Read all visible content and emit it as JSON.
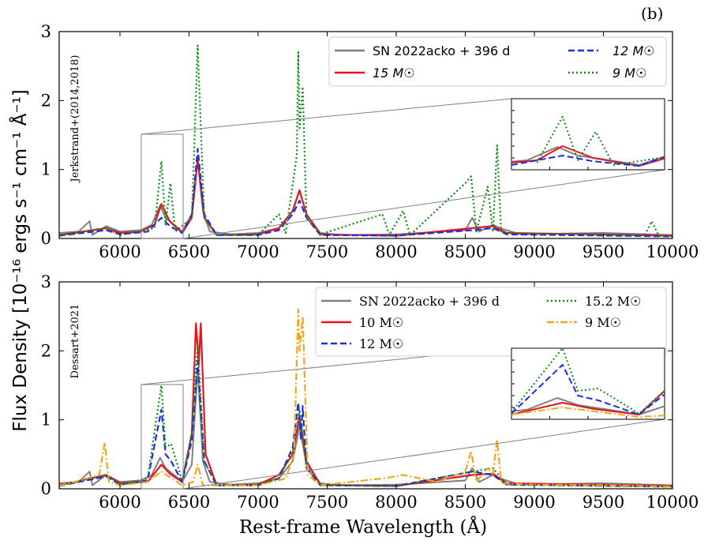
{
  "figure": {
    "panel_label": "(b)",
    "ylabel": "Flux Density [10⁻¹⁶ ergs s⁻¹ cm⁻¹ Å⁻¹]",
    "xlabel": "Rest-frame Wavelength (Å)"
  },
  "chart_data": [
    {
      "type": "line",
      "panel": "top",
      "model_label": "Jerkstrand+(2014,2018)",
      "xlim": [
        5560,
        10000
      ],
      "ylim": [
        0,
        3
      ],
      "xticks": [
        6000,
        6500,
        7000,
        7500,
        8000,
        8500,
        9000,
        9500,
        10000
      ],
      "yticks": [
        0,
        1,
        2,
        3
      ],
      "inset": {
        "x_range": [
          6200,
          6500
        ],
        "y_range": [
          0,
          1.5
        ],
        "location": "upper-right"
      },
      "series": [
        {
          "name": "SN 2022acko + 396 d",
          "color": "#808080",
          "style": "solid",
          "points": [
            [
              5560,
              0.08
            ],
            [
              5700,
              0.1
            ],
            [
              5780,
              0.25
            ],
            [
              5800,
              0.05
            ],
            [
              5900,
              0.18
            ],
            [
              6000,
              0.1
            ],
            [
              6150,
              0.12
            ],
            [
              6230,
              0.2
            ],
            [
              6290,
              0.48
            ],
            [
              6330,
              0.3
            ],
            [
              6380,
              0.22
            ],
            [
              6450,
              0.1
            ],
            [
              6520,
              0.35
            ],
            [
              6563,
              1.15
            ],
            [
              6600,
              0.4
            ],
            [
              6650,
              0.1
            ],
            [
              6800,
              0.06
            ],
            [
              7000,
              0.08
            ],
            [
              7150,
              0.15
            ],
            [
              7250,
              0.4
            ],
            [
              7300,
              0.7
            ],
            [
              7350,
              0.35
            ],
            [
              7450,
              0.08
            ],
            [
              7600,
              0.05
            ],
            [
              8000,
              0.06
            ],
            [
              8500,
              0.12
            ],
            [
              8550,
              0.3
            ],
            [
              8600,
              0.1
            ],
            [
              8700,
              0.2
            ],
            [
              8750,
              0.15
            ],
            [
              8900,
              0.06
            ],
            [
              9500,
              0.08
            ],
            [
              10000,
              0.05
            ]
          ]
        },
        {
          "name": "15 M☉",
          "color": "#e8141c",
          "style": "solid",
          "points": [
            [
              5560,
              0.05
            ],
            [
              5900,
              0.15
            ],
            [
              6000,
              0.08
            ],
            [
              6150,
              0.1
            ],
            [
              6250,
              0.2
            ],
            [
              6300,
              0.5
            ],
            [
              6360,
              0.25
            ],
            [
              6450,
              0.08
            ],
            [
              6520,
              0.3
            ],
            [
              6563,
              1.15
            ],
            [
              6610,
              0.3
            ],
            [
              6700,
              0.05
            ],
            [
              7000,
              0.06
            ],
            [
              7150,
              0.15
            ],
            [
              7250,
              0.4
            ],
            [
              7300,
              0.7
            ],
            [
              7350,
              0.35
            ],
            [
              7450,
              0.06
            ],
            [
              8000,
              0.04
            ],
            [
              8550,
              0.15
            ],
            [
              8700,
              0.18
            ],
            [
              8800,
              0.08
            ],
            [
              10000,
              0.04
            ]
          ]
        },
        {
          "name": "12 M☉",
          "color": "#1a2ee6",
          "style": "dashed",
          "points": [
            [
              5560,
              0.04
            ],
            [
              5900,
              0.12
            ],
            [
              6000,
              0.06
            ],
            [
              6200,
              0.1
            ],
            [
              6300,
              0.3
            ],
            [
              6360,
              0.18
            ],
            [
              6450,
              0.08
            ],
            [
              6520,
              0.35
            ],
            [
              6563,
              1.3
            ],
            [
              6610,
              0.35
            ],
            [
              6700,
              0.05
            ],
            [
              7000,
              0.05
            ],
            [
              7150,
              0.12
            ],
            [
              7250,
              0.35
            ],
            [
              7300,
              0.55
            ],
            [
              7350,
              0.3
            ],
            [
              7450,
              0.05
            ],
            [
              8000,
              0.04
            ],
            [
              8550,
              0.12
            ],
            [
              8700,
              0.15
            ],
            [
              8800,
              0.06
            ],
            [
              10000,
              0.03
            ]
          ]
        },
        {
          "name": "9 M☉",
          "color": "#0e8a14",
          "style": "dotted",
          "points": [
            [
              5560,
              0.04
            ],
            [
              5900,
              0.15
            ],
            [
              6000,
              0.05
            ],
            [
              6250,
              0.15
            ],
            [
              6300,
              1.12
            ],
            [
              6330,
              0.2
            ],
            [
              6365,
              0.8
            ],
            [
              6400,
              0.1
            ],
            [
              6520,
              0.3
            ],
            [
              6563,
              2.8
            ],
            [
              6610,
              0.3
            ],
            [
              6700,
              0.05
            ],
            [
              7000,
              0.05
            ],
            [
              7150,
              0.35
            ],
            [
              7200,
              0.08
            ],
            [
              7280,
              1.2
            ],
            [
              7291,
              2.7
            ],
            [
              7300,
              1.6
            ],
            [
              7323,
              2.2
            ],
            [
              7350,
              0.3
            ],
            [
              7450,
              0.06
            ],
            [
              7900,
              0.35
            ],
            [
              7950,
              0.05
            ],
            [
              8050,
              0.4
            ],
            [
              8100,
              0.05
            ],
            [
              8500,
              0.8
            ],
            [
              8542,
              0.9
            ],
            [
              8580,
              0.1
            ],
            [
              8662,
              0.75
            ],
            [
              8700,
              0.1
            ],
            [
              8730,
              1.35
            ],
            [
              8760,
              0.08
            ],
            [
              9800,
              0.05
            ],
            [
              9850,
              0.25
            ],
            [
              9900,
              0.04
            ],
            [
              10000,
              0.03
            ]
          ]
        }
      ]
    },
    {
      "type": "line",
      "panel": "bottom",
      "model_label": "Dessart+2021",
      "xlim": [
        5560,
        10000
      ],
      "ylim": [
        0,
        3
      ],
      "xticks": [
        6000,
        6500,
        7000,
        7500,
        8000,
        8500,
        9000,
        9500,
        10000
      ],
      "yticks": [
        0,
        1,
        2,
        3
      ],
      "inset": {
        "x_range": [
          6200,
          6500
        ],
        "y_range": [
          0,
          1.5
        ],
        "location": "upper-right"
      },
      "series": [
        {
          "name": "SN 2022acko + 396 d",
          "color": "#808080",
          "style": "solid",
          "points": [
            [
              5560,
              0.08
            ],
            [
              5700,
              0.1
            ],
            [
              5780,
              0.25
            ],
            [
              5800,
              0.05
            ],
            [
              5900,
              0.2
            ],
            [
              6000,
              0.1
            ],
            [
              6150,
              0.12
            ],
            [
              6230,
              0.2
            ],
            [
              6290,
              0.45
            ],
            [
              6330,
              0.3
            ],
            [
              6380,
              0.22
            ],
            [
              6450,
              0.1
            ],
            [
              6520,
              0.35
            ],
            [
              6563,
              1.75
            ],
            [
              6600,
              0.4
            ],
            [
              6650,
              0.1
            ],
            [
              6800,
              0.06
            ],
            [
              7000,
              0.08
            ],
            [
              7150,
              0.15
            ],
            [
              7250,
              0.4
            ],
            [
              7300,
              0.9
            ],
            [
              7350,
              0.35
            ],
            [
              7450,
              0.08
            ],
            [
              7600,
              0.05
            ],
            [
              8000,
              0.06
            ],
            [
              8500,
              0.12
            ],
            [
              8550,
              0.3
            ],
            [
              8600,
              0.1
            ],
            [
              8700,
              0.2
            ],
            [
              8750,
              0.15
            ],
            [
              8900,
              0.06
            ],
            [
              9500,
              0.08
            ],
            [
              10000,
              0.05
            ]
          ]
        },
        {
          "name": "10 M☉",
          "color": "#e8141c",
          "style": "solid",
          "points": [
            [
              5560,
              0.05
            ],
            [
              5900,
              0.2
            ],
            [
              6000,
              0.08
            ],
            [
              6200,
              0.1
            ],
            [
              6300,
              0.35
            ],
            [
              6360,
              0.22
            ],
            [
              6450,
              0.1
            ],
            [
              6520,
              0.8
            ],
            [
              6550,
              2.4
            ],
            [
              6570,
              1.8
            ],
            [
              6585,
              2.4
            ],
            [
              6620,
              0.5
            ],
            [
              6700,
              0.05
            ],
            [
              7000,
              0.06
            ],
            [
              7150,
              0.2
            ],
            [
              7250,
              0.5
            ],
            [
              7300,
              1.05
            ],
            [
              7350,
              0.4
            ],
            [
              7450,
              0.06
            ],
            [
              8000,
              0.04
            ],
            [
              8550,
              0.2
            ],
            [
              8700,
              0.22
            ],
            [
              8800,
              0.08
            ],
            [
              10000,
              0.04
            ]
          ]
        },
        {
          "name": "12 M☉",
          "color": "#1a2ee6",
          "style": "dashed",
          "points": [
            [
              5560,
              0.04
            ],
            [
              5900,
              0.18
            ],
            [
              6000,
              0.06
            ],
            [
              6200,
              0.12
            ],
            [
              6300,
              1.15
            ],
            [
              6330,
              0.5
            ],
            [
              6370,
              0.4
            ],
            [
              6450,
              0.1
            ],
            [
              6520,
              0.7
            ],
            [
              6563,
              1.85
            ],
            [
              6610,
              0.4
            ],
            [
              6700,
              0.05
            ],
            [
              7000,
              0.05
            ],
            [
              7150,
              0.15
            ],
            [
              7250,
              0.6
            ],
            [
              7291,
              1.25
            ],
            [
              7310,
              0.7
            ],
            [
              7323,
              1.2
            ],
            [
              7350,
              0.3
            ],
            [
              7450,
              0.05
            ],
            [
              8000,
              0.04
            ],
            [
              8550,
              0.25
            ],
            [
              8700,
              0.2
            ],
            [
              8800,
              0.06
            ],
            [
              10000,
              0.03
            ]
          ]
        },
        {
          "name": "15.2 M☉",
          "color": "#0e8a14",
          "style": "dotted",
          "points": [
            [
              5560,
              0.04
            ],
            [
              5900,
              0.2
            ],
            [
              6000,
              0.06
            ],
            [
              6200,
              0.15
            ],
            [
              6300,
              1.5
            ],
            [
              6330,
              0.6
            ],
            [
              6370,
              0.65
            ],
            [
              6450,
              0.12
            ],
            [
              6520,
              0.8
            ],
            [
              6563,
              2.1
            ],
            [
              6610,
              0.4
            ],
            [
              6700,
              0.05
            ],
            [
              7000,
              0.06
            ],
            [
              7150,
              0.15
            ],
            [
              7250,
              0.55
            ],
            [
              7300,
              1.15
            ],
            [
              7350,
              0.3
            ],
            [
              7450,
              0.05
            ],
            [
              8000,
              0.04
            ],
            [
              8550,
              0.25
            ],
            [
              8700,
              0.3
            ],
            [
              8800,
              0.06
            ],
            [
              10000,
              0.03
            ]
          ]
        },
        {
          "name": "9 M☉",
          "color": "#f0a81a",
          "style": "dashdot",
          "points": [
            [
              5560,
              0.04
            ],
            [
              5850,
              0.2
            ],
            [
              5890,
              0.67
            ],
            [
              5920,
              0.1
            ],
            [
              6000,
              0.05
            ],
            [
              6200,
              0.1
            ],
            [
              6300,
              0.25
            ],
            [
              6450,
              0.05
            ],
            [
              6530,
              0.1
            ],
            [
              6563,
              0.35
            ],
            [
              6600,
              0.05
            ],
            [
              7000,
              0.05
            ],
            [
              7200,
              0.15
            ],
            [
              7260,
              0.5
            ],
            [
              7291,
              2.6
            ],
            [
              7300,
              2.0
            ],
            [
              7323,
              2.5
            ],
            [
              7360,
              0.2
            ],
            [
              7450,
              0.05
            ],
            [
              7900,
              0.15
            ],
            [
              8000,
              0.18
            ],
            [
              8050,
              0.2
            ],
            [
              8300,
              0.1
            ],
            [
              8500,
              0.25
            ],
            [
              8542,
              0.55
            ],
            [
              8580,
              0.1
            ],
            [
              8662,
              0.3
            ],
            [
              8700,
              0.2
            ],
            [
              8730,
              0.72
            ],
            [
              8760,
              0.08
            ],
            [
              9000,
              0.06
            ],
            [
              9500,
              0.05
            ],
            [
              10000,
              0.03
            ]
          ]
        }
      ]
    }
  ]
}
